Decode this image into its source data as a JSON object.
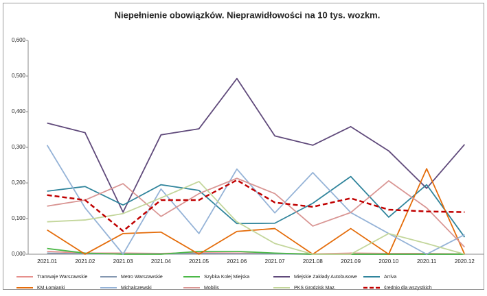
{
  "chart_data": {
    "type": "line",
    "title": "Niepełnienie obowiązków. Nieprawidłowości na 10 tys. wozkm.",
    "categories": [
      "2021.01",
      "2021.02",
      "2021.03",
      "2021.04",
      "2021.05",
      "2021.06",
      "2021.07",
      "2021.08",
      "2021.09",
      "2020.10",
      "2020.11",
      "2020.12"
    ],
    "ylim": [
      0,
      0.6
    ],
    "yticks": [
      {
        "value": 0,
        "label": "0,000"
      },
      {
        "value": 0.1,
        "label": "0,100"
      },
      {
        "value": 0.2,
        "label": "0,200"
      },
      {
        "value": 0.3,
        "label": "0,300"
      },
      {
        "value": 0.4,
        "label": "0,400"
      },
      {
        "value": 0.5,
        "label": "0,500"
      },
      {
        "value": 0.6,
        "label": "0,600"
      }
    ],
    "grid": false,
    "legend": "bottom",
    "series": [
      {
        "name": "Tramwaje Warszawskie",
        "color": "#e6908d",
        "values": [
          0.008,
          0.003,
          0.003,
          0.002,
          0.004,
          0.003,
          0.002,
          0.001,
          0.003,
          0.002,
          0.002,
          0.001
        ]
      },
      {
        "name": "Metro Warszawskie",
        "color": "#8497b0",
        "values": [
          0.003,
          0.001,
          0.001,
          0.001,
          0.002,
          0.001,
          0.001,
          0,
          0,
          0,
          0,
          0
        ]
      },
      {
        "name": "Szybka Kolej Miejska",
        "color": "#4cb848",
        "values": [
          0.016,
          0.003,
          0,
          0,
          0.008,
          0.008,
          0.003,
          0,
          0,
          0,
          0,
          0
        ]
      },
      {
        "name": "Miejskie Zakłady Autobusowe",
        "color": "#604a7b",
        "values": [
          0.368,
          0.341,
          0.118,
          0.335,
          0.352,
          0.493,
          0.332,
          0.306,
          0.358,
          0.29,
          0.185,
          0.308
        ]
      },
      {
        "name": "Arriva",
        "color": "#31859c",
        "values": [
          0.177,
          0.19,
          0.138,
          0.195,
          0.179,
          0.086,
          0.087,
          0.143,
          0.218,
          0.104,
          0.195,
          0.048
        ]
      },
      {
        "name": "KM Łomianki",
        "color": "#e46c0a",
        "values": [
          0.068,
          0,
          0.058,
          0.062,
          0,
          0.064,
          0.072,
          0,
          0.072,
          0,
          0.24,
          0
        ]
      },
      {
        "name": "Michalczewski",
        "color": "#95b3d7",
        "values": [
          0.306,
          0.13,
          0,
          0.183,
          0.058,
          0.239,
          0.116,
          0.229,
          0.117,
          0.058,
          0,
          0.055
        ]
      },
      {
        "name": "Mobilis",
        "color": "#d99694",
        "values": [
          0.135,
          0.152,
          0.198,
          0.106,
          0.17,
          0.213,
          0.17,
          0.079,
          0.117,
          0.206,
          0.13,
          0.02
        ]
      },
      {
        "name": "PKS Grodzisk Maz.",
        "color": "#c3d69b",
        "values": [
          0.091,
          0.096,
          0.114,
          0.158,
          0.204,
          0.091,
          0.03,
          0,
          0,
          0.058,
          0.03,
          0
        ]
      },
      {
        "name": "średnio dla wszystkich",
        "color": "#c00000",
        "dash": true,
        "values": [
          0.166,
          0.152,
          0.065,
          0.152,
          0.152,
          0.208,
          0.145,
          0.133,
          0.157,
          0.125,
          0.12,
          0.118
        ]
      }
    ]
  }
}
